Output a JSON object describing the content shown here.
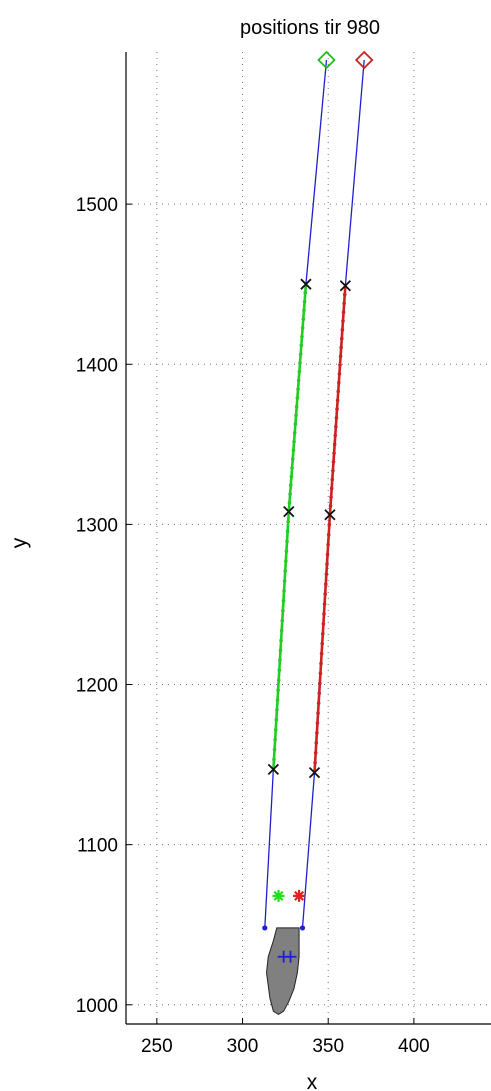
{
  "chart_data": {
    "type": "line",
    "title": "positions tir 980",
    "xlabel": "x",
    "ylabel": "y",
    "xlim": [
      232,
      445
    ],
    "ylim": [
      988,
      1595
    ],
    "xticks": [
      250,
      300,
      350,
      400
    ],
    "yticks": [
      1000,
      1100,
      1200,
      1300,
      1400,
      1500
    ],
    "grid": true,
    "series": [
      {
        "marker": "line",
        "color": "#1f1fd0",
        "x": [
          313,
          318,
          327,
          337,
          349
        ],
        "y": [
          1048,
          1147,
          1308,
          1450,
          1590
        ]
      },
      {
        "marker": "line",
        "color": "#1f1fd0",
        "x": [
          335,
          342,
          351,
          360,
          371
        ],
        "y": [
          1048,
          1145,
          1306,
          1449,
          1590
        ]
      },
      {
        "marker": "dotted-line",
        "color": "#22cc22",
        "x": [
          318,
          327,
          337
        ],
        "y": [
          1147,
          1308,
          1450
        ]
      },
      {
        "marker": "dotted-line",
        "color": "#cc2222",
        "x": [
          342,
          351,
          360
        ],
        "y": [
          1145,
          1306,
          1449
        ]
      },
      {
        "marker": "x",
        "color": "#111111",
        "x": [
          318,
          327,
          337,
          342,
          351,
          360
        ],
        "y": [
          1147,
          1308,
          1450,
          1145,
          1306,
          1449
        ]
      },
      {
        "marker": "diamond",
        "color": "#22bb22",
        "x": [
          349
        ],
        "y": [
          1590
        ]
      },
      {
        "marker": "diamond",
        "color": "#cc2222",
        "x": [
          371
        ],
        "y": [
          1590
        ]
      },
      {
        "marker": "star",
        "color": "#22dd22",
        "x": [
          321
        ],
        "y": [
          1068
        ]
      },
      {
        "marker": "star",
        "color": "#dd2222",
        "x": [
          333
        ],
        "y": [
          1068
        ]
      },
      {
        "marker": "dot",
        "color": "#1f1fd0",
        "x": [
          313,
          335
        ],
        "y": [
          1048,
          1048
        ]
      },
      {
        "marker": "plus",
        "color": "#1f1fd0",
        "x": [
          324,
          328
        ],
        "y": [
          1030,
          1030
        ]
      }
    ],
    "ship_outline": {
      "color": "#808080",
      "x": [
        320,
        333,
        333,
        332,
        330,
        327,
        324,
        321,
        318,
        316,
        314,
        315,
        318,
        320
      ],
      "y": [
        1048,
        1048,
        1030,
        1020,
        1010,
        1002,
        996,
        994,
        996,
        1004,
        1020,
        1030,
        1040,
        1048
      ]
    }
  }
}
